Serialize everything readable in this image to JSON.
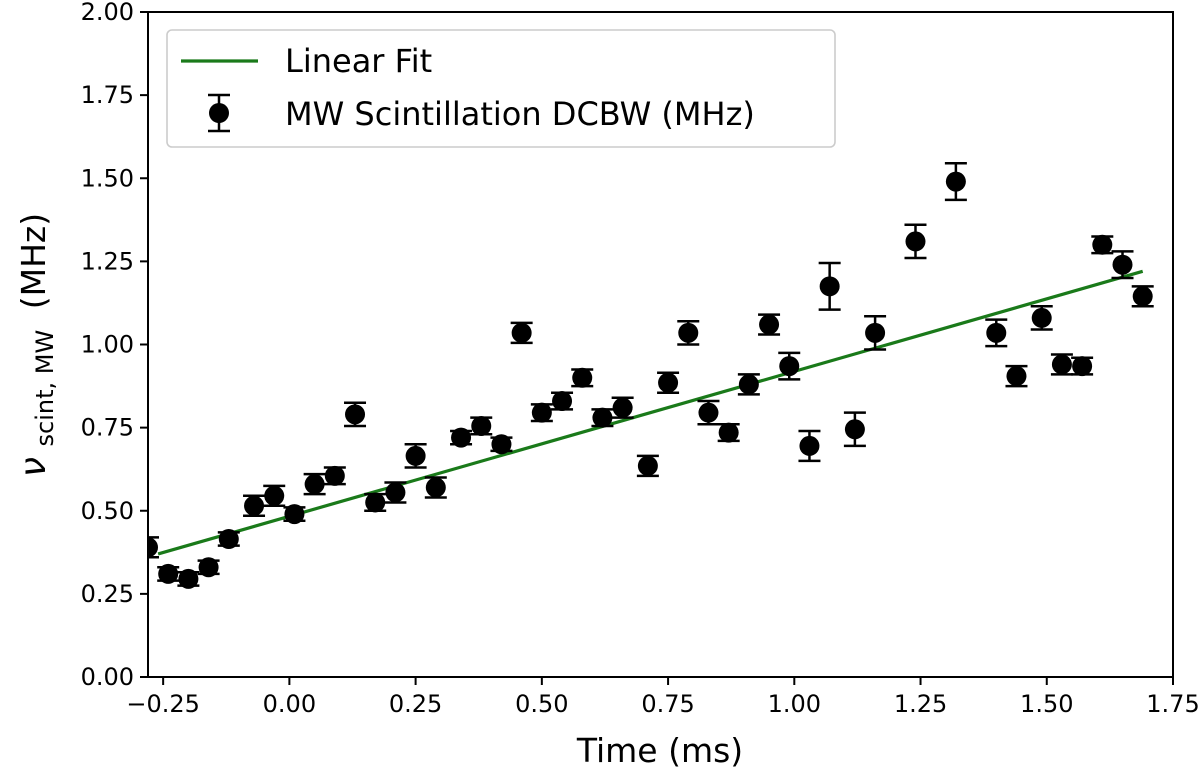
{
  "chart_data": {
    "type": "scatter",
    "title": "",
    "xlabel": "Time (ms)",
    "ylabel": {
      "main": "ν",
      "subscript": "scint, MW",
      "unit": "(MHz)"
    },
    "xlim": [
      -0.28,
      1.75
    ],
    "ylim": [
      0.0,
      2.0
    ],
    "xticks": [
      -0.25,
      0.0,
      0.25,
      0.5,
      0.75,
      1.0,
      1.25,
      1.5,
      1.75
    ],
    "xtick_labels": [
      "−0.25",
      "0.00",
      "0.25",
      "0.50",
      "0.75",
      "1.00",
      "1.25",
      "1.50",
      "1.75"
    ],
    "yticks": [
      0.0,
      0.25,
      0.5,
      0.75,
      1.0,
      1.25,
      1.5,
      1.75,
      2.0
    ],
    "ytick_labels": [
      "0.00",
      "0.25",
      "0.50",
      "0.75",
      "1.00",
      "1.25",
      "1.50",
      "1.75",
      "2.00"
    ],
    "grid": false,
    "legend": {
      "placement": "top-left",
      "entries": [
        "Linear Fit",
        "MW Scintillation DCBW (MHz)"
      ]
    },
    "colors": {
      "fit": "#1a7a1a",
      "points": "#000000",
      "axes": "#000000",
      "legend_border": "#cccccc"
    },
    "series": [
      {
        "name": "Linear Fit",
        "kind": "line",
        "x": [
          -0.26,
          1.69
        ],
        "y": [
          0.37,
          1.22
        ]
      },
      {
        "name": "MW Scintillation DCBW (MHz)",
        "kind": "errorbar",
        "points": [
          {
            "x": -0.28,
            "y": 0.39,
            "err": 0.03
          },
          {
            "x": -0.24,
            "y": 0.31,
            "err": 0.02
          },
          {
            "x": -0.2,
            "y": 0.295,
            "err": 0.02
          },
          {
            "x": -0.16,
            "y": 0.33,
            "err": 0.02
          },
          {
            "x": -0.12,
            "y": 0.415,
            "err": 0.02
          },
          {
            "x": -0.07,
            "y": 0.515,
            "err": 0.03
          },
          {
            "x": -0.03,
            "y": 0.545,
            "err": 0.03
          },
          {
            "x": 0.01,
            "y": 0.49,
            "err": 0.02
          },
          {
            "x": 0.05,
            "y": 0.58,
            "err": 0.03
          },
          {
            "x": 0.09,
            "y": 0.605,
            "err": 0.025
          },
          {
            "x": 0.13,
            "y": 0.79,
            "err": 0.035
          },
          {
            "x": 0.17,
            "y": 0.525,
            "err": 0.025
          },
          {
            "x": 0.21,
            "y": 0.555,
            "err": 0.03
          },
          {
            "x": 0.25,
            "y": 0.665,
            "err": 0.035
          },
          {
            "x": 0.29,
            "y": 0.57,
            "err": 0.03
          },
          {
            "x": 0.34,
            "y": 0.72,
            "err": 0.02
          },
          {
            "x": 0.38,
            "y": 0.755,
            "err": 0.025
          },
          {
            "x": 0.42,
            "y": 0.7,
            "err": 0.02
          },
          {
            "x": 0.46,
            "y": 1.035,
            "err": 0.03
          },
          {
            "x": 0.5,
            "y": 0.795,
            "err": 0.025
          },
          {
            "x": 0.54,
            "y": 0.83,
            "err": 0.025
          },
          {
            "x": 0.58,
            "y": 0.9,
            "err": 0.025
          },
          {
            "x": 0.62,
            "y": 0.78,
            "err": 0.025
          },
          {
            "x": 0.66,
            "y": 0.81,
            "err": 0.03
          },
          {
            "x": 0.71,
            "y": 0.635,
            "err": 0.03
          },
          {
            "x": 0.75,
            "y": 0.885,
            "err": 0.03
          },
          {
            "x": 0.79,
            "y": 1.035,
            "err": 0.035
          },
          {
            "x": 0.83,
            "y": 0.795,
            "err": 0.035
          },
          {
            "x": 0.87,
            "y": 0.735,
            "err": 0.025
          },
          {
            "x": 0.91,
            "y": 0.88,
            "err": 0.03
          },
          {
            "x": 0.95,
            "y": 1.06,
            "err": 0.03
          },
          {
            "x": 0.99,
            "y": 0.935,
            "err": 0.04
          },
          {
            "x": 1.03,
            "y": 0.695,
            "err": 0.045
          },
          {
            "x": 1.07,
            "y": 1.175,
            "err": 0.07
          },
          {
            "x": 1.12,
            "y": 0.745,
            "err": 0.05
          },
          {
            "x": 1.16,
            "y": 1.035,
            "err": 0.05
          },
          {
            "x": 1.24,
            "y": 1.31,
            "err": 0.05
          },
          {
            "x": 1.32,
            "y": 1.49,
            "err": 0.055
          },
          {
            "x": 1.4,
            "y": 1.035,
            "err": 0.04
          },
          {
            "x": 1.44,
            "y": 0.905,
            "err": 0.03
          },
          {
            "x": 1.49,
            "y": 1.08,
            "err": 0.035
          },
          {
            "x": 1.53,
            "y": 0.94,
            "err": 0.03
          },
          {
            "x": 1.57,
            "y": 0.935,
            "err": 0.025
          },
          {
            "x": 1.61,
            "y": 1.3,
            "err": 0.025
          },
          {
            "x": 1.65,
            "y": 1.24,
            "err": 0.04
          },
          {
            "x": 1.69,
            "y": 1.145,
            "err": 0.03
          }
        ]
      }
    ]
  }
}
